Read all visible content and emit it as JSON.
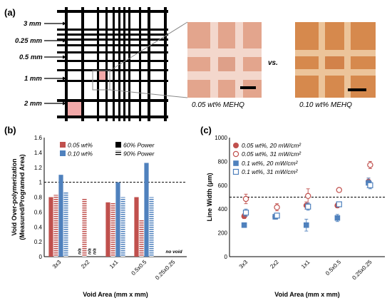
{
  "panel_a": {
    "label": "(a)",
    "grid_labels": [
      "3 mm",
      "0.25 mm",
      "0.5 mm",
      "1 mm",
      "2 mm"
    ],
    "vs_text": "vs.",
    "photo_left_caption": "0.05 wt% MEHQ",
    "photo_right_caption": "0.10 wt% MEHQ",
    "colors": {
      "pink": "#f1a8a8",
      "photo_left_bg": "#e3a58d",
      "photo_right_bg": "#d6894d"
    }
  },
  "chart_data": [
    {
      "type": "bar",
      "panel": "(b)",
      "title": "",
      "ylabel_line1": "Void Over-polymerization",
      "ylabel_line2": "(Measured/Programed Area)",
      "xlabel": "Void Area (mm x mm)",
      "categories": [
        "3x3",
        "2x2",
        "1x1",
        "0.5x0.5",
        "0.25x0.25"
      ],
      "ylim": [
        0,
        1.6
      ],
      "yticks": [
        "0",
        "0.2",
        "0.4",
        "0.6",
        "0.8",
        "1",
        "1.2",
        "1.4",
        "1.6"
      ],
      "reference_line": 1,
      "legend": [
        "0.05 wt%",
        "0.10 wt%",
        "60% Power",
        "90% Power"
      ],
      "series": [
        {
          "name": "0.05 wt%",
          "power": "60% Power",
          "color": "#c0504d",
          "values": [
            0.8,
            null,
            0.73,
            0.8,
            null
          ]
        },
        {
          "name": "0.05 wt%",
          "power": "90% Power",
          "color": "#c0504d",
          "values": [
            0.83,
            0.78,
            0.72,
            0.49,
            null
          ]
        },
        {
          "name": "0.10 wt%",
          "power": "60% Power",
          "color": "#4f81bd",
          "values": [
            1.1,
            null,
            1.0,
            1.26,
            null
          ]
        },
        {
          "name": "0.10 wt%",
          "power": "90% Power",
          "color": "#4f81bd",
          "values": [
            0.87,
            null,
            0.8,
            0.8,
            null
          ]
        }
      ],
      "annotations": {
        "na": "n/a",
        "no_void": "no void"
      }
    },
    {
      "type": "scatter",
      "panel": "(c)",
      "title": "",
      "ylabel": "Line Width (μm)",
      "xlabel": "Void Area (mm x mm)",
      "categories": [
        "3x3",
        "2x2",
        "1x1",
        "0.5x0.5",
        "0.25x0.25"
      ],
      "ylim": [
        0,
        1000
      ],
      "yticks": [
        "0",
        "200",
        "400",
        "600",
        "800",
        "1000"
      ],
      "reference_line": 500,
      "legend": [
        "0.05 wt%, 20 mW/cm²",
        "0.05 wt%, 31 mW/cm²",
        "0.1 wt%, 20 mW/cm²",
        "0.1 wt%, 31 mW/cm²"
      ],
      "series": [
        {
          "name": "0.05 wt%, 20 mW/cm²",
          "marker": "filled-circle",
          "color": "#c0504d",
          "values": [
            340,
            335,
            430,
            430,
            630
          ],
          "errors": [
            20,
            20,
            30,
            20,
            30
          ]
        },
        {
          "name": "0.05 wt%, 31 mW/cm²",
          "marker": "open-circle",
          "color": "#c0504d",
          "values": [
            485,
            415,
            510,
            560,
            770
          ],
          "errors": [
            40,
            30,
            60,
            10,
            30
          ]
        },
        {
          "name": "0.1 wt%, 20 mW/cm²",
          "marker": "filled-square",
          "color": "#4f81bd",
          "values": [
            265,
            335,
            265,
            325,
            620
          ],
          "errors": [
            20,
            20,
            50,
            30,
            40
          ]
        },
        {
          "name": "0.1 wt%, 31 mW/cm²",
          "marker": "open-square",
          "color": "#4f81bd",
          "values": [
            370,
            345,
            420,
            440,
            600
          ],
          "errors": [
            30,
            20,
            30,
            20,
            30
          ]
        }
      ]
    }
  ]
}
